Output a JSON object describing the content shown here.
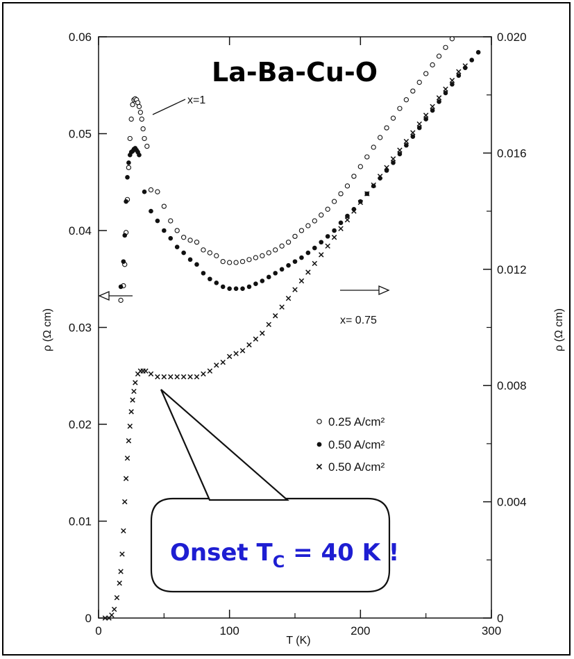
{
  "colors": {
    "callout_text": "#1e1ed2",
    "marks": "#111111"
  },
  "chart_data": {
    "type": "scatter",
    "title": "La-Ba-Cu-O",
    "xlabel": "T (K)",
    "ylabel_left": "ρ (Ω cm)",
    "ylabel_right": "ρ (Ω cm)",
    "xlim": [
      0,
      300
    ],
    "ylim_left": [
      0,
      0.06
    ],
    "ylim_right": [
      0,
      0.02
    ],
    "x_ticks": [
      {
        "value": 0,
        "label": "0"
      },
      {
        "value": 100,
        "label": "100"
      },
      {
        "value": 200,
        "label": "200"
      },
      {
        "value": 300,
        "label": "300"
      }
    ],
    "y_ticks_left": [
      {
        "value": 0,
        "label": "0"
      },
      {
        "value": 0.01,
        "label": "0.01"
      },
      {
        "value": 0.02,
        "label": "0.02"
      },
      {
        "value": 0.03,
        "label": "0.03"
      },
      {
        "value": 0.04,
        "label": "0.04"
      },
      {
        "value": 0.05,
        "label": "0.05"
      },
      {
        "value": 0.06,
        "label": "0.06"
      }
    ],
    "y_ticks_right": [
      {
        "value": 0,
        "label": "0"
      },
      {
        "value": 0.004,
        "label": "0.004"
      },
      {
        "value": 0.008,
        "label": "0.008"
      },
      {
        "value": 0.012,
        "label": "0.012"
      },
      {
        "value": 0.016,
        "label": "0.016"
      },
      {
        "value": 0.02,
        "label": "0.020"
      }
    ],
    "legend_position": "right",
    "series": [
      {
        "name": "0.25 A/cm²",
        "marker": "open-circle",
        "axis": "left",
        "x": [
          17,
          19,
          20,
          21,
          22,
          23,
          24,
          25,
          26,
          27,
          28,
          29,
          30,
          31,
          32,
          33,
          34,
          35,
          37,
          40,
          45,
          50,
          55,
          60,
          65,
          70,
          75,
          80,
          85,
          90,
          95,
          100,
          105,
          110,
          115,
          120,
          125,
          130,
          135,
          140,
          145,
          150,
          155,
          160,
          165,
          170,
          175,
          180,
          185,
          190,
          195,
          200,
          205,
          210,
          215,
          220,
          225,
          230,
          235,
          240,
          245,
          250,
          255,
          260,
          265,
          270
        ],
        "y": [
          0.0328,
          0.0343,
          0.0365,
          0.0398,
          0.0432,
          0.0465,
          0.0495,
          0.0515,
          0.053,
          0.0535,
          0.0536,
          0.0535,
          0.0532,
          0.0528,
          0.0522,
          0.0515,
          0.0505,
          0.0495,
          0.0487,
          0.0442,
          0.044,
          0.0425,
          0.041,
          0.04,
          0.0393,
          0.039,
          0.0388,
          0.038,
          0.0377,
          0.0374,
          0.0368,
          0.0367,
          0.0367,
          0.0368,
          0.037,
          0.0372,
          0.0374,
          0.0377,
          0.038,
          0.0384,
          0.0388,
          0.0394,
          0.04,
          0.0405,
          0.041,
          0.0416,
          0.0422,
          0.043,
          0.0438,
          0.0446,
          0.0456,
          0.0466,
          0.0476,
          0.0486,
          0.0496,
          0.0506,
          0.0516,
          0.0526,
          0.0535,
          0.0544,
          0.0553,
          0.0562,
          0.0571,
          0.058,
          0.0589,
          0.0598
        ]
      },
      {
        "name": "0.50 A/cm²",
        "marker": "filled-circle",
        "axis": "left",
        "x": [
          17,
          19,
          20,
          21,
          22,
          23,
          24,
          25,
          26,
          27,
          28,
          29,
          30,
          31,
          35,
          40,
          45,
          50,
          55,
          60,
          65,
          70,
          75,
          80,
          85,
          90,
          95,
          100,
          105,
          110,
          115,
          120,
          125,
          130,
          135,
          140,
          145,
          150,
          155,
          160,
          165,
          170,
          175,
          180,
          185,
          190,
          195,
          200,
          205,
          210,
          215,
          220,
          225,
          230,
          235,
          240,
          245,
          250,
          255,
          260,
          265,
          270,
          275,
          280,
          285,
          290
        ],
        "y": [
          0.0342,
          0.0368,
          0.0395,
          0.043,
          0.0455,
          0.047,
          0.0478,
          0.0481,
          0.0482,
          0.0484,
          0.0485,
          0.0483,
          0.0481,
          0.0478,
          0.044,
          0.042,
          0.041,
          0.04,
          0.0392,
          0.0383,
          0.0377,
          0.037,
          0.0365,
          0.0356,
          0.035,
          0.0346,
          0.0342,
          0.034,
          0.034,
          0.034,
          0.0342,
          0.0345,
          0.0348,
          0.0352,
          0.0356,
          0.036,
          0.0364,
          0.0368,
          0.0372,
          0.0377,
          0.0382,
          0.0388,
          0.0394,
          0.04,
          0.0408,
          0.0415,
          0.0422,
          0.043,
          0.0438,
          0.0446,
          0.0454,
          0.0462,
          0.047,
          0.0479,
          0.0488,
          0.0497,
          0.0506,
          0.0515,
          0.0524,
          0.0533,
          0.0542,
          0.0551,
          0.056,
          0.0568,
          0.0576,
          0.0584
        ]
      },
      {
        "name": "0.50 A/cm²",
        "marker": "cross",
        "axis": "right",
        "x": [
          5,
          8,
          10,
          12,
          14,
          16,
          17,
          18,
          19,
          20,
          21,
          22,
          23,
          24,
          25,
          26,
          27,
          28,
          30,
          32,
          34,
          36,
          40,
          45,
          50,
          55,
          60,
          65,
          70,
          75,
          80,
          85,
          90,
          95,
          100,
          105,
          110,
          115,
          120,
          125,
          130,
          135,
          140,
          145,
          150,
          155,
          160,
          165,
          170,
          175,
          180,
          185,
          190,
          195,
          200,
          205,
          210,
          215,
          220,
          225,
          230,
          235,
          240,
          245,
          250,
          255,
          260,
          265,
          270,
          275,
          280
        ],
        "y": [
          0,
          0,
          0.0001,
          0.0003,
          0.0007,
          0.0012,
          0.0016,
          0.0022,
          0.003,
          0.004,
          0.0048,
          0.0055,
          0.0061,
          0.0066,
          0.0071,
          0.0075,
          0.0078,
          0.0081,
          0.0084,
          0.0085,
          0.0085,
          0.0085,
          0.0084,
          0.0083,
          0.0083,
          0.0083,
          0.0083,
          0.0083,
          0.0083,
          0.0083,
          0.0084,
          0.0085,
          0.0087,
          0.0088,
          0.009,
          0.0091,
          0.0092,
          0.0094,
          0.0096,
          0.0098,
          0.0101,
          0.0104,
          0.0107,
          0.011,
          0.0113,
          0.0116,
          0.0119,
          0.0122,
          0.0125,
          0.0128,
          0.0131,
          0.0134,
          0.0137,
          0.014,
          0.0143,
          0.0146,
          0.0149,
          0.0152,
          0.0155,
          0.0158,
          0.0161,
          0.0164,
          0.0167,
          0.017,
          0.0173,
          0.0176,
          0.0179,
          0.0182,
          0.0185,
          0.0188,
          0.019
        ]
      }
    ],
    "annotations": {
      "x1": "x=1",
      "x075": "x= 0.75",
      "callout_main": "Onset T",
      "callout_sub": "C",
      "callout_tail": " = 40 K !"
    }
  }
}
